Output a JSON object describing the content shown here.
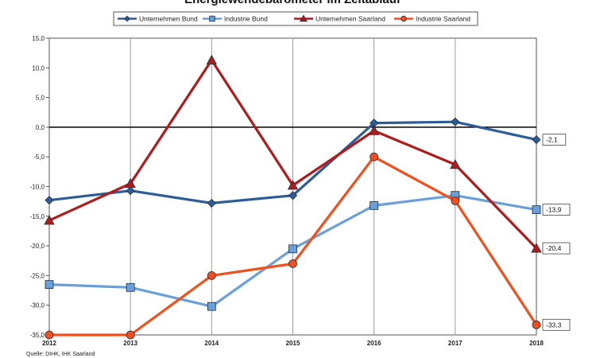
{
  "chart_data": {
    "type": "line",
    "title": "Energiewendebarometer im Zeitablauf",
    "source": "Quelle: DIHK, IHK Saarland",
    "x": [
      "2012",
      "2013",
      "2014",
      "2015",
      "2016",
      "2017",
      "2018"
    ],
    "ylim": [
      -35,
      15
    ],
    "yticks": [
      "15,0",
      "10,0",
      "5,0",
      "0,0",
      "-5,0",
      "-10,0",
      "-15,0",
      "-20,0",
      "-25,0",
      "-30,0",
      "-35,0"
    ],
    "ytick_values": [
      15,
      10,
      5,
      0,
      -5,
      -10,
      -15,
      -20,
      -25,
      -30,
      -35
    ],
    "grid": "vertical",
    "legend_position": "top",
    "series": [
      {
        "name": "Unternehmen Bund",
        "values": [
          -12.3,
          -10.7,
          -12.8,
          -11.5,
          0.7,
          0.9,
          -2.1
        ],
        "color": "#2e5c96",
        "marker": "diamond",
        "end_label": "-2,1"
      },
      {
        "name": "Industrie Bund",
        "values": [
          -26.5,
          -27.0,
          -30.2,
          -20.5,
          -13.2,
          -11.5,
          -13.9
        ],
        "color": "#6a9fd8",
        "marker": "square",
        "end_label": "-13,9"
      },
      {
        "name": "Unternehmen Saarland",
        "values": [
          -15.7,
          -9.5,
          11.3,
          -9.8,
          -0.6,
          -6.3,
          -20.4
        ],
        "color": "#b01c1c",
        "marker": "triangle",
        "end_label": "-20,4"
      },
      {
        "name": "Industrie Saarland",
        "values": [
          -35.0,
          -35.0,
          -25.0,
          -23.0,
          -5.0,
          -12.4,
          -33.3
        ],
        "color": "#f0501e",
        "marker": "circle",
        "end_label": "-33,3"
      }
    ]
  }
}
